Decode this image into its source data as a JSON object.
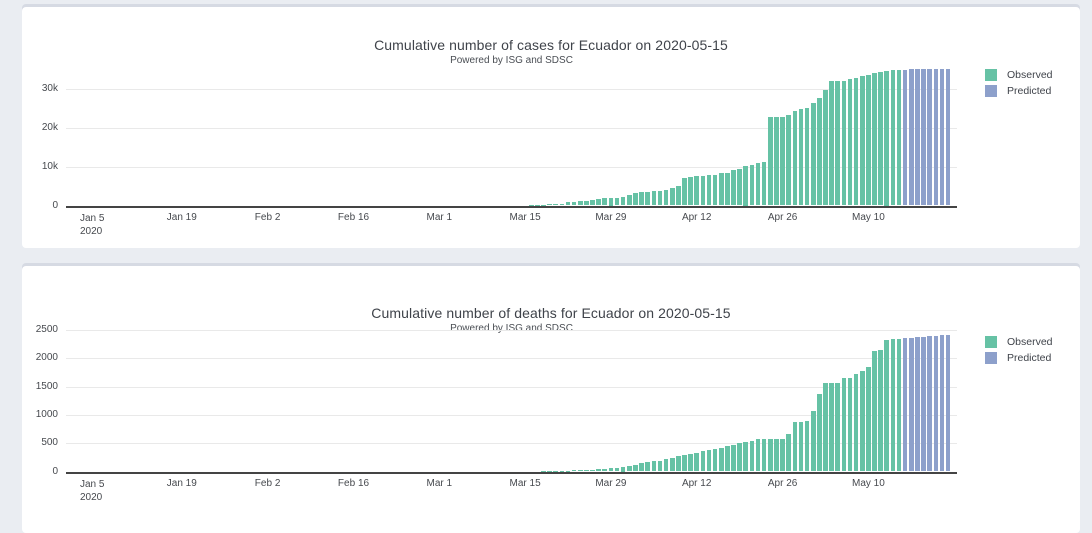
{
  "page": {
    "background": "#eaedf2",
    "panel_background": "#ffffff",
    "panel_edge_shadow": "#d6dae3"
  },
  "colors": {
    "observed": "#66c2a5",
    "predicted": "#8da0cb",
    "axis_line": "#444444",
    "gridline": "#e9e9e9",
    "text": "#3f434a"
  },
  "chart_data": [
    {
      "type": "bar",
      "title": "Cumulative number of cases for Ecuador on 2020-05-15",
      "subtitle": "Powered by ISG and SDSC",
      "xlabel": "",
      "ylabel": "",
      "grid": true,
      "legend_position": "top-right",
      "x_origin_date": "2020-01-05",
      "ylim": [
        0,
        35256
      ],
      "yticks": [
        {
          "value": 0,
          "label": "0"
        },
        {
          "value": 10000,
          "label": "10k"
        },
        {
          "value": 20000,
          "label": "20k"
        },
        {
          "value": 30000,
          "label": "30k"
        }
      ],
      "xticks": [
        {
          "date": "2020-01-05",
          "label": "Jan 5",
          "label2": "2020"
        },
        {
          "date": "2020-01-19",
          "label": "Jan 19"
        },
        {
          "date": "2020-02-02",
          "label": "Feb 2"
        },
        {
          "date": "2020-02-16",
          "label": "Feb 16"
        },
        {
          "date": "2020-03-01",
          "label": "Mar 1"
        },
        {
          "date": "2020-03-15",
          "label": "Mar 15"
        },
        {
          "date": "2020-03-29",
          "label": "Mar 29"
        },
        {
          "date": "2020-04-12",
          "label": "Apr 12"
        },
        {
          "date": "2020-04-26",
          "label": "Apr 26"
        },
        {
          "date": "2020-05-10",
          "label": "May 10"
        }
      ],
      "series": [
        {
          "name": "Observed",
          "color_key": "observed",
          "points": [
            [
              "2020-03-01",
              6
            ],
            [
              "2020-03-02",
              6
            ],
            [
              "2020-03-03",
              7
            ],
            [
              "2020-03-04",
              10
            ],
            [
              "2020-03-05",
              13
            ],
            [
              "2020-03-06",
              13
            ],
            [
              "2020-03-07",
              14
            ],
            [
              "2020-03-08",
              14
            ],
            [
              "2020-03-09",
              15
            ],
            [
              "2020-03-10",
              15
            ],
            [
              "2020-03-11",
              17
            ],
            [
              "2020-03-12",
              17
            ],
            [
              "2020-03-13",
              23
            ],
            [
              "2020-03-14",
              28
            ],
            [
              "2020-03-15",
              37
            ],
            [
              "2020-03-16",
              58
            ],
            [
              "2020-03-17",
              111
            ],
            [
              "2020-03-18",
              155
            ],
            [
              "2020-03-19",
              260
            ],
            [
              "2020-03-20",
              367
            ],
            [
              "2020-03-21",
              506
            ],
            [
              "2020-03-22",
              789
            ],
            [
              "2020-03-23",
              981
            ],
            [
              "2020-03-24",
              1082
            ],
            [
              "2020-03-25",
              1173
            ],
            [
              "2020-03-26",
              1403
            ],
            [
              "2020-03-27",
              1595
            ],
            [
              "2020-03-28",
              1823
            ],
            [
              "2020-03-29",
              1924
            ],
            [
              "2020-03-30",
              1962
            ],
            [
              "2020-03-31",
              2240
            ],
            [
              "2020-04-01",
              2748
            ],
            [
              "2020-04-02",
              3163
            ],
            [
              "2020-04-03",
              3368
            ],
            [
              "2020-04-04",
              3465
            ],
            [
              "2020-04-05",
              3646
            ],
            [
              "2020-04-06",
              3747
            ],
            [
              "2020-04-07",
              3995
            ],
            [
              "2020-04-08",
              4450
            ],
            [
              "2020-04-09",
              4965
            ],
            [
              "2020-04-10",
              7161
            ],
            [
              "2020-04-11",
              7257
            ],
            [
              "2020-04-12",
              7466
            ],
            [
              "2020-04-13",
              7529
            ],
            [
              "2020-04-14",
              7858
            ],
            [
              "2020-04-15",
              7895
            ],
            [
              "2020-04-16",
              8225
            ],
            [
              "2020-04-17",
              8450
            ],
            [
              "2020-04-18",
              9022
            ],
            [
              "2020-04-19",
              9468
            ],
            [
              "2020-04-20",
              10128
            ],
            [
              "2020-04-21",
              10398
            ],
            [
              "2020-04-22",
              10850
            ],
            [
              "2020-04-23",
              11183
            ],
            [
              "2020-04-24",
              22719
            ],
            [
              "2020-04-25",
              22719
            ],
            [
              "2020-04-26",
              22719
            ],
            [
              "2020-04-27",
              23240
            ],
            [
              "2020-04-28",
              24258
            ],
            [
              "2020-04-29",
              24675
            ],
            [
              "2020-04-30",
              24934
            ],
            [
              "2020-05-01",
              26336
            ],
            [
              "2020-05-02",
              27464
            ],
            [
              "2020-05-03",
              29559
            ],
            [
              "2020-05-04",
              31881
            ],
            [
              "2020-05-05",
              31881
            ],
            [
              "2020-05-06",
              31881
            ],
            [
              "2020-05-07",
              32437
            ],
            [
              "2020-05-08",
              32763
            ],
            [
              "2020-05-09",
              33182
            ],
            [
              "2020-05-10",
              33582
            ],
            [
              "2020-05-11",
              33851
            ],
            [
              "2020-05-12",
              34351
            ],
            [
              "2020-05-13",
              34551
            ],
            [
              "2020-05-14",
              34701
            ],
            [
              "2020-05-15",
              34801
            ]
          ]
        },
        {
          "name": "Predicted",
          "color_key": "predicted",
          "points": [
            [
              "2020-05-16",
              34870
            ],
            [
              "2020-05-17",
              34900
            ],
            [
              "2020-05-18",
              34930
            ],
            [
              "2020-05-19",
              34950
            ],
            [
              "2020-05-20",
              34970
            ],
            [
              "2020-05-21",
              34990
            ],
            [
              "2020-05-22",
              35010
            ],
            [
              "2020-05-23",
              35030
            ]
          ]
        }
      ]
    },
    {
      "type": "bar",
      "title": "Cumulative number of deaths for Ecuador on 2020-05-15",
      "subtitle": "Powered by ISG and SDSC",
      "xlabel": "",
      "ylabel": "",
      "grid": true,
      "legend_position": "top-right",
      "x_origin_date": "2020-01-05",
      "ylim": [
        0,
        2517
      ],
      "yticks": [
        {
          "value": 0,
          "label": "0"
        },
        {
          "value": 500,
          "label": "500"
        },
        {
          "value": 1000,
          "label": "1000"
        },
        {
          "value": 1500,
          "label": "1500"
        },
        {
          "value": 2000,
          "label": "2000"
        },
        {
          "value": 2500,
          "label": "2500"
        }
      ],
      "xticks": [
        {
          "date": "2020-01-05",
          "label": "Jan 5",
          "label2": "2020"
        },
        {
          "date": "2020-01-19",
          "label": "Jan 19"
        },
        {
          "date": "2020-02-02",
          "label": "Feb 2"
        },
        {
          "date": "2020-02-16",
          "label": "Feb 16"
        },
        {
          "date": "2020-03-01",
          "label": "Mar 1"
        },
        {
          "date": "2020-03-15",
          "label": "Mar 15"
        },
        {
          "date": "2020-03-29",
          "label": "Mar 29"
        },
        {
          "date": "2020-04-12",
          "label": "Apr 12"
        },
        {
          "date": "2020-04-26",
          "label": "Apr 26"
        },
        {
          "date": "2020-05-10",
          "label": "May 10"
        }
      ],
      "series": [
        {
          "name": "Observed",
          "color_key": "observed",
          "points": [
            [
              "2020-03-13",
              2
            ],
            [
              "2020-03-14",
              2
            ],
            [
              "2020-03-15",
              2
            ],
            [
              "2020-03-16",
              2
            ],
            [
              "2020-03-17",
              2
            ],
            [
              "2020-03-18",
              3
            ],
            [
              "2020-03-19",
              4
            ],
            [
              "2020-03-20",
              5
            ],
            [
              "2020-03-21",
              7
            ],
            [
              "2020-03-22",
              14
            ],
            [
              "2020-03-23",
              18
            ],
            [
              "2020-03-24",
              27
            ],
            [
              "2020-03-25",
              28
            ],
            [
              "2020-03-26",
              34
            ],
            [
              "2020-03-27",
              36
            ],
            [
              "2020-03-28",
              48
            ],
            [
              "2020-03-29",
              58
            ],
            [
              "2020-03-30",
              60
            ],
            [
              "2020-03-31",
              75
            ],
            [
              "2020-04-01",
              93
            ],
            [
              "2020-04-02",
              120
            ],
            [
              "2020-04-03",
              145
            ],
            [
              "2020-04-04",
              172
            ],
            [
              "2020-04-05",
              180
            ],
            [
              "2020-04-06",
              191
            ],
            [
              "2020-04-07",
              220
            ],
            [
              "2020-04-08",
              242
            ],
            [
              "2020-04-09",
              272
            ],
            [
              "2020-04-10",
              297
            ],
            [
              "2020-04-11",
              315
            ],
            [
              "2020-04-12",
              333
            ],
            [
              "2020-04-13",
              355
            ],
            [
              "2020-04-14",
              388
            ],
            [
              "2020-04-15",
              403
            ],
            [
              "2020-04-16",
              421
            ],
            [
              "2020-04-17",
              456
            ],
            [
              "2020-04-18",
              474
            ],
            [
              "2020-04-19",
              507
            ],
            [
              "2020-04-20",
              520
            ],
            [
              "2020-04-21",
              537
            ],
            [
              "2020-04-22",
              576
            ],
            [
              "2020-04-23",
              576
            ],
            [
              "2020-04-24",
              576
            ],
            [
              "2020-04-25",
              576
            ],
            [
              "2020-04-26",
              576
            ],
            [
              "2020-04-27",
              663
            ],
            [
              "2020-04-28",
              871
            ],
            [
              "2020-04-29",
              883
            ],
            [
              "2020-04-30",
              900
            ],
            [
              "2020-05-01",
              1063
            ],
            [
              "2020-05-02",
              1371
            ],
            [
              "2020-05-03",
              1564
            ],
            [
              "2020-05-04",
              1569
            ],
            [
              "2020-05-05",
              1569
            ],
            [
              "2020-05-06",
              1654
            ],
            [
              "2020-05-07",
              1654
            ],
            [
              "2020-05-08",
              1717
            ],
            [
              "2020-05-09",
              1780
            ],
            [
              "2020-05-10",
              1838
            ],
            [
              "2020-05-11",
              2127
            ],
            [
              "2020-05-12",
              2145
            ],
            [
              "2020-05-13",
              2327
            ],
            [
              "2020-05-14",
              2338
            ],
            [
              "2020-05-15",
              2338
            ]
          ]
        },
        {
          "name": "Predicted",
          "color_key": "predicted",
          "points": [
            [
              "2020-05-16",
              2350
            ],
            [
              "2020-05-17",
              2362
            ],
            [
              "2020-05-18",
              2372
            ],
            [
              "2020-05-19",
              2382
            ],
            [
              "2020-05-20",
              2390
            ],
            [
              "2020-05-21",
              2398
            ],
            [
              "2020-05-22",
              2404
            ],
            [
              "2020-05-23",
              2410
            ]
          ]
        }
      ]
    }
  ]
}
